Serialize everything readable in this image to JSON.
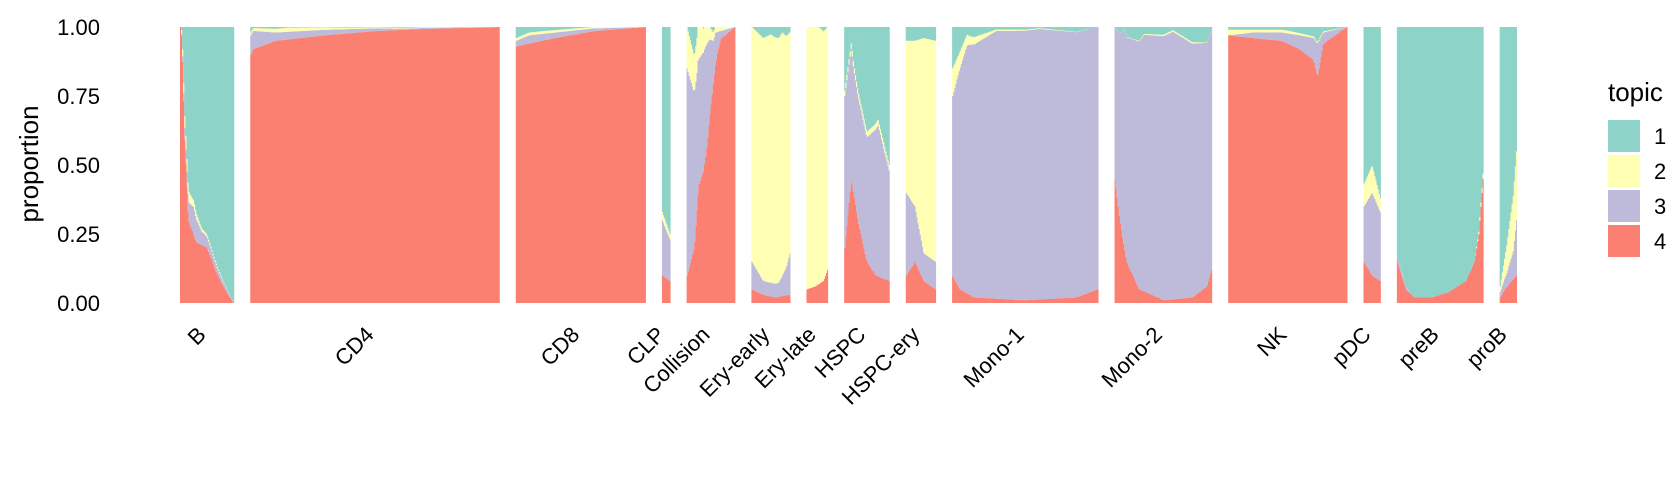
{
  "chart_data": {
    "type": "area",
    "subtype": "stacked structure plot (topic proportions per cell, grouped by cell type)",
    "ylabel": "proportion",
    "ylim": [
      0,
      1
    ],
    "yticks": [
      "0.00",
      "0.25",
      "0.50",
      "0.75",
      "1.00"
    ],
    "grid": false,
    "legend": {
      "title": "topic",
      "position": "right"
    },
    "topics": [
      {
        "name": "1",
        "color": "#8DD3C7"
      },
      {
        "name": "2",
        "color": "#FFFFB3"
      },
      {
        "name": "3",
        "color": "#BEBADA"
      },
      {
        "name": "4",
        "color": "#FB8072"
      }
    ],
    "groups": [
      {
        "name": "B",
        "cells": 50,
        "t4": [
          [
            0,
            1.0
          ],
          [
            0.03,
            0.95
          ],
          [
            0.08,
            0.6
          ],
          [
            0.15,
            0.3
          ],
          [
            0.3,
            0.22
          ],
          [
            0.5,
            0.2
          ],
          [
            0.7,
            0.1
          ],
          [
            0.9,
            0.03
          ],
          [
            1,
            0.0
          ]
        ],
        "t3": [
          [
            0,
            0.0
          ],
          [
            0.1,
            0.05
          ],
          [
            0.25,
            0.1
          ],
          [
            0.4,
            0.05
          ],
          [
            0.6,
            0.03
          ],
          [
            1,
            0.0
          ]
        ],
        "t2": [
          [
            0,
            0.0
          ],
          [
            0.05,
            0.03
          ],
          [
            0.1,
            0.05
          ],
          [
            0.2,
            0.03
          ],
          [
            0.4,
            0.01
          ],
          [
            1,
            0.0
          ]
        ]
      },
      {
        "name": "CD4",
        "cells": 230,
        "t4": [
          [
            0,
            0.9
          ],
          [
            0.01,
            0.92
          ],
          [
            0.1,
            0.95
          ],
          [
            0.3,
            0.97
          ],
          [
            0.5,
            0.985
          ],
          [
            0.7,
            0.993
          ],
          [
            1,
            1.0
          ]
        ],
        "t3": [
          [
            0,
            0.07
          ],
          [
            0.1,
            0.03
          ],
          [
            0.3,
            0.02
          ],
          [
            0.6,
            0.005
          ],
          [
            1,
            0.0
          ]
        ],
        "t2": [
          [
            0,
            0.01
          ],
          [
            0.15,
            0.015
          ],
          [
            0.4,
            0.005
          ],
          [
            1,
            0.0
          ]
        ]
      },
      {
        "name": "CD8",
        "cells": 120,
        "t4": [
          [
            0,
            0.93
          ],
          [
            0.1,
            0.94
          ],
          [
            0.3,
            0.96
          ],
          [
            0.6,
            0.985
          ],
          [
            1,
            1.0
          ]
        ],
        "t3": [
          [
            0,
            0.02
          ],
          [
            0.1,
            0.03
          ],
          [
            0.3,
            0.02
          ],
          [
            0.6,
            0.01
          ],
          [
            1,
            0.0
          ]
        ],
        "t2": [
          [
            0,
            0.01
          ],
          [
            0.2,
            0.01
          ],
          [
            1,
            0.0
          ]
        ]
      },
      {
        "name": "CLP",
        "cells": 8,
        "t4": [
          [
            0,
            0.1
          ],
          [
            1,
            0.08
          ]
        ],
        "t3": [
          [
            0,
            0.2
          ],
          [
            1,
            0.15
          ]
        ],
        "t2": [
          [
            0,
            0.03
          ],
          [
            1,
            0.02
          ]
        ]
      },
      {
        "name": "Collision",
        "cells": 45,
        "t4": [
          [
            0,
            0.1
          ],
          [
            0.15,
            0.2
          ],
          [
            0.25,
            0.45
          ],
          [
            0.35,
            0.48
          ],
          [
            0.55,
            0.8
          ],
          [
            0.65,
            0.95
          ],
          [
            0.75,
            1.0
          ],
          [
            1,
            1.0
          ]
        ],
        "t3": [
          [
            0,
            0.75
          ],
          [
            0.2,
            0.5
          ],
          [
            0.4,
            0.4
          ],
          [
            0.55,
            0.15
          ],
          [
            0.7,
            0.03
          ],
          [
            1,
            0.0
          ]
        ],
        "t2": [
          [
            0,
            0.15
          ],
          [
            0.25,
            0.12
          ],
          [
            0.45,
            0.05
          ],
          [
            0.6,
            0.02
          ],
          [
            1,
            0.0
          ]
        ]
      },
      {
        "name": "Ery-early",
        "cells": 36,
        "t4": [
          [
            0,
            0.05
          ],
          [
            0.3,
            0.03
          ],
          [
            0.6,
            0.02
          ],
          [
            1,
            0.03
          ]
        ],
        "t3": [
          [
            0,
            0.1
          ],
          [
            0.3,
            0.05
          ],
          [
            0.7,
            0.05
          ],
          [
            0.9,
            0.1
          ],
          [
            1,
            0.15
          ]
        ],
        "t2": [
          [
            0,
            0.85
          ],
          [
            0.5,
            0.9
          ],
          [
            0.8,
            0.88
          ],
          [
            1,
            0.8
          ]
        ]
      },
      {
        "name": "Ery-late",
        "cells": 20,
        "t4": [
          [
            0,
            0.05
          ],
          [
            0.4,
            0.06
          ],
          [
            0.8,
            0.08
          ],
          [
            1,
            0.12
          ]
        ],
        "t3": [
          [
            0,
            0.0
          ],
          [
            1,
            0.0
          ]
        ],
        "t2": [
          [
            0,
            0.95
          ],
          [
            0.5,
            0.94
          ],
          [
            1,
            0.88
          ]
        ]
      },
      {
        "name": "HSPC",
        "cells": 42,
        "t4": [
          [
            0,
            0.2
          ],
          [
            0.15,
            0.45
          ],
          [
            0.3,
            0.3
          ],
          [
            0.5,
            0.15
          ],
          [
            0.7,
            0.1
          ],
          [
            1,
            0.08
          ]
        ],
        "t3": [
          [
            0,
            0.55
          ],
          [
            0.2,
            0.45
          ],
          [
            0.5,
            0.45
          ],
          [
            0.75,
            0.55
          ],
          [
            1,
            0.4
          ]
        ],
        "t2": [
          [
            0,
            0.02
          ],
          [
            0.5,
            0.02
          ],
          [
            1,
            0.02
          ]
        ]
      },
      {
        "name": "HSPC-ery",
        "cells": 28,
        "t4": [
          [
            0,
            0.1
          ],
          [
            0.3,
            0.15
          ],
          [
            0.6,
            0.08
          ],
          [
            1,
            0.05
          ]
        ],
        "t3": [
          [
            0,
            0.3
          ],
          [
            0.3,
            0.2
          ],
          [
            0.6,
            0.1
          ],
          [
            1,
            0.1
          ]
        ],
        "t2": [
          [
            0,
            0.55
          ],
          [
            0.3,
            0.6
          ],
          [
            0.6,
            0.78
          ],
          [
            1,
            0.8
          ]
        ]
      },
      {
        "name": "Mono-1",
        "cells": 135,
        "t4": [
          [
            0,
            0.1
          ],
          [
            0.05,
            0.05
          ],
          [
            0.15,
            0.02
          ],
          [
            0.5,
            0.01
          ],
          [
            0.85,
            0.02
          ],
          [
            1,
            0.05
          ]
        ],
        "t3": [
          [
            0,
            0.65
          ],
          [
            0.05,
            0.8
          ],
          [
            0.1,
            0.9
          ],
          [
            0.3,
            0.97
          ],
          [
            0.6,
            0.98
          ],
          [
            1,
            0.95
          ]
        ],
        "t2": [
          [
            0,
            0.1
          ],
          [
            0.05,
            0.06
          ],
          [
            0.12,
            0.03
          ],
          [
            0.3,
            0.005
          ],
          [
            1,
            0.0
          ]
        ]
      },
      {
        "name": "Mono-2",
        "cells": 90,
        "t4": [
          [
            0,
            0.45
          ],
          [
            0.05,
            0.3
          ],
          [
            0.12,
            0.15
          ],
          [
            0.25,
            0.05
          ],
          [
            0.5,
            0.01
          ],
          [
            0.8,
            0.02
          ],
          [
            0.95,
            0.06
          ],
          [
            1,
            0.12
          ]
        ],
        "t3": [
          [
            0,
            0.55
          ],
          [
            0.1,
            0.8
          ],
          [
            0.3,
            0.93
          ],
          [
            0.6,
            0.97
          ],
          [
            1,
            0.87
          ]
        ],
        "t2": [
          [
            0,
            0.0
          ],
          [
            0.5,
            0.005
          ],
          [
            0.8,
            0.005
          ],
          [
            1,
            0.0
          ]
        ]
      },
      {
        "name": "NK",
        "cells": 110,
        "t4": [
          [
            0,
            0.97
          ],
          [
            0.2,
            0.96
          ],
          [
            0.45,
            0.95
          ],
          [
            0.6,
            0.92
          ],
          [
            0.72,
            0.88
          ],
          [
            0.75,
            0.82
          ],
          [
            0.8,
            0.94
          ],
          [
            1,
            1.0
          ]
        ],
        "t3": [
          [
            0,
            0.0
          ],
          [
            0.2,
            0.02
          ],
          [
            0.45,
            0.03
          ],
          [
            0.6,
            0.05
          ],
          [
            0.72,
            0.08
          ],
          [
            0.75,
            0.12
          ],
          [
            0.8,
            0.04
          ],
          [
            1,
            0.0
          ]
        ],
        "t2": [
          [
            0,
            0.02
          ],
          [
            0.2,
            0.01
          ],
          [
            0.5,
            0.01
          ],
          [
            1,
            0.0
          ]
        ]
      },
      {
        "name": "pDC",
        "cells": 16,
        "t4": [
          [
            0,
            0.15
          ],
          [
            0.5,
            0.1
          ],
          [
            1,
            0.08
          ]
        ],
        "t3": [
          [
            0,
            0.2
          ],
          [
            0.5,
            0.3
          ],
          [
            1,
            0.25
          ]
        ],
        "t2": [
          [
            0,
            0.08
          ],
          [
            0.5,
            0.1
          ],
          [
            1,
            0.05
          ]
        ]
      },
      {
        "name": "preB",
        "cells": 80,
        "t4": [
          [
            0,
            0.15
          ],
          [
            0.1,
            0.05
          ],
          [
            0.2,
            0.02
          ],
          [
            0.4,
            0.02
          ],
          [
            0.6,
            0.04
          ],
          [
            0.8,
            0.08
          ],
          [
            0.9,
            0.15
          ],
          [
            0.95,
            0.25
          ],
          [
            1,
            0.45
          ]
        ],
        "t3": [
          [
            0,
            0.02
          ],
          [
            0.2,
            0.0
          ],
          [
            1,
            0.0
          ]
        ],
        "t2": [
          [
            0,
            0.0
          ],
          [
            0.9,
            0.0
          ],
          [
            1,
            0.02
          ]
        ]
      },
      {
        "name": "proB",
        "cells": 16,
        "t4": [
          [
            0,
            0.02
          ],
          [
            0.3,
            0.05
          ],
          [
            0.7,
            0.08
          ],
          [
            1,
            0.1
          ]
        ],
        "t3": [
          [
            0,
            0.02
          ],
          [
            0.4,
            0.05
          ],
          [
            0.8,
            0.1
          ],
          [
            1,
            0.2
          ]
        ],
        "t2": [
          [
            0,
            0.02
          ],
          [
            0.4,
            0.1
          ],
          [
            0.8,
            0.2
          ],
          [
            1,
            0.25
          ]
        ]
      }
    ]
  }
}
